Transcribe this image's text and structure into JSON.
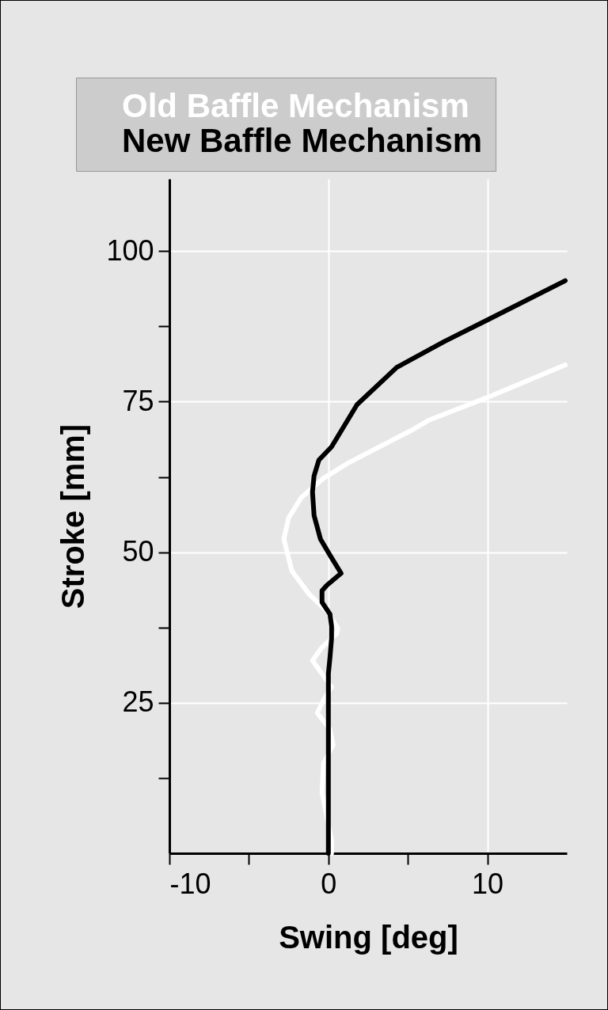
{
  "chart_data": {
    "type": "line",
    "xlabel": "Swing [deg]",
    "ylabel": "Stroke [mm]",
    "xlim": [
      -10,
      15
    ],
    "ylim": [
      0,
      112
    ],
    "xticks": [
      -10,
      {
        "value": -5,
        "label": null
      },
      0,
      {
        "value": 5,
        "label": null
      },
      10
    ],
    "yticks": [
      {
        "value": 12.5,
        "label": null
      },
      25,
      {
        "value": 37.5,
        "label": null
      },
      50,
      {
        "value": 62.5,
        "label": null
      },
      75,
      {
        "value": 87.5,
        "label": null
      },
      100
    ],
    "grid": true,
    "legend": "top left",
    "series": [
      {
        "name": "Old Baffle Mechanism",
        "color": "#ffffff",
        "x": [
          0.2,
          0.2,
          -0.4,
          -0.3,
          0.3,
          0.1,
          -0.7,
          -0.3,
          0.2,
          -1.0,
          -0.4,
          0.5,
          0.6,
          0,
          -1.2,
          -2.3,
          -2.8,
          -2.5,
          -1.7,
          -0.3,
          1.3,
          3.8,
          5.2,
          6.3,
          9.9,
          14.9
        ],
        "values": [
          0,
          2.2,
          10.1,
          15,
          18,
          20.6,
          23.3,
          25.5,
          27.6,
          32,
          34.2,
          36.4,
          37.3,
          40,
          43,
          46.9,
          52.2,
          55.7,
          59.1,
          62.3,
          64.9,
          68.3,
          70.2,
          71.9,
          75.6,
          81.1
        ]
      },
      {
        "name": "New Baffle Mechanism",
        "color": "#000000",
        "x": [
          0,
          0,
          0.1,
          0.2,
          0.2,
          0.1,
          -0.4,
          -0.4,
          -0.1,
          0.8,
          0.1,
          -0.5,
          -0.9,
          -1.0,
          -0.9,
          -0.6,
          0.2,
          1.8,
          4.3,
          7.3,
          10.1,
          14.9
        ],
        "values": [
          0,
          29.8,
          32.5,
          35.7,
          37.7,
          39.7,
          41.7,
          43.6,
          44.5,
          46.5,
          49.5,
          52.2,
          56.1,
          60,
          62.7,
          65.3,
          67.5,
          74.5,
          80.7,
          85,
          88.7,
          95.1
        ]
      }
    ]
  }
}
